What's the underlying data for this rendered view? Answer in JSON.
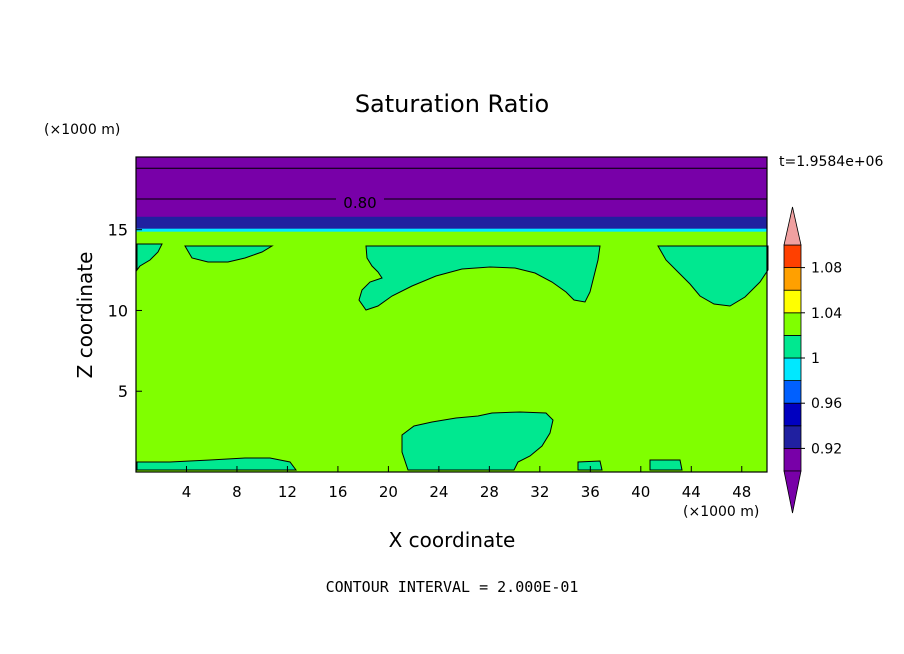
{
  "chart_data": {
    "type": "heatmap",
    "title": "Saturation Ratio",
    "xlabel": "X coordinate",
    "ylabel": "Z coordinate",
    "x_unit": "(×1000 m)",
    "y_unit": "(×1000 m)",
    "time_label": "t=1.9584e+06",
    "footer": "CONTOUR INTERVAL = 2.000E-01",
    "contour_label": "0.80",
    "xlim": [
      0,
      50
    ],
    "ylim": [
      0,
      19.5
    ],
    "x_ticks": [
      4,
      8,
      12,
      16,
      20,
      24,
      28,
      32,
      36,
      40,
      44,
      48
    ],
    "y_ticks": [
      5,
      10,
      15
    ],
    "background_level_color": "#80ff00",
    "colorbar": {
      "bins": [
        {
          "lo": 0.9,
          "hi": 0.92,
          "color": "#7800a8"
        },
        {
          "lo": 0.92,
          "hi": 0.94,
          "color": "#2020a0"
        },
        {
          "lo": 0.94,
          "hi": 0.96,
          "color": "#0000c0"
        },
        {
          "lo": 0.96,
          "hi": 0.98,
          "color": "#0060ff"
        },
        {
          "lo": 0.98,
          "hi": 1.0,
          "color": "#00e8ff"
        },
        {
          "lo": 1.0,
          "hi": 1.02,
          "color": "#00e890"
        },
        {
          "lo": 1.02,
          "hi": 1.04,
          "color": "#80ff00"
        },
        {
          "lo": 1.04,
          "hi": 1.06,
          "color": "#ffff00"
        },
        {
          "lo": 1.06,
          "hi": 1.08,
          "color": "#ffa000"
        },
        {
          "lo": 1.08,
          "hi": 1.1,
          "color": "#ff4000"
        }
      ],
      "under_color": "#7800a8",
      "over_color": "#f0a0a0",
      "labels": [
        "0.92",
        "0.96",
        "1",
        "1.04",
        "1.08"
      ]
    },
    "bands": [
      {
        "z0": 15.0,
        "z1": 19.5,
        "color": "#7800a8"
      },
      {
        "z0": 15.0,
        "z1": 15.8,
        "color": "#2020a0"
      }
    ],
    "contour_lines_z": [
      16.9,
      18.8
    ]
  }
}
